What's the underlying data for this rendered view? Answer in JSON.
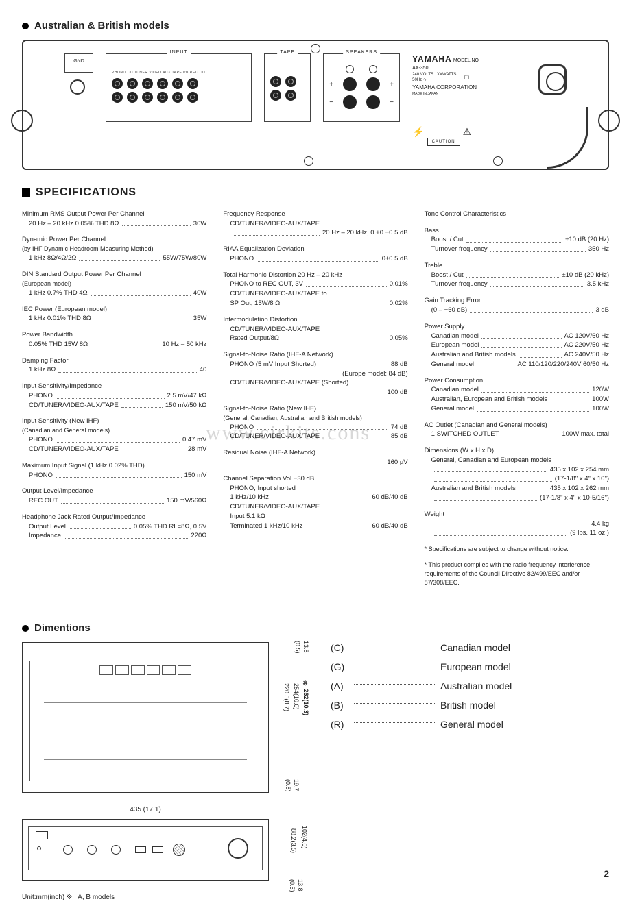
{
  "header": {
    "title": "Australian & British  models"
  },
  "rear_panel": {
    "gnd": "GND",
    "input_legend": "INPUT",
    "tape_legend": "TAPE",
    "speakers_legend": "SPEAKERS",
    "input_labels": "PHONO    CD   TUNER  VIDEO AUX   TAPE PB   REC OUT",
    "brand": "YAMAHA",
    "model_no": "MODEL NO\nAX-350",
    "voltage": "240 VOLTS   XXWATTS\n50Hz ∿",
    "corp": "YAMAHA CORPORATION",
    "made_in": "MADE IN JAPAN",
    "caution": "CAUTION"
  },
  "specs_header": "SPECIFICATIONS",
  "col1": [
    {
      "title": "Minimum RMS Output Power Per Channel",
      "lines": [
        {
          "lbl": "20 Hz – 20 kHz 0.05% THD 8Ω",
          "val": "30W"
        }
      ]
    },
    {
      "title": "Dynamic Power Per Channel",
      "sub": "(by IHF Dynamic Headroom Measuring Method)",
      "lines": [
        {
          "lbl": "1 kHz 8Ω/4Ω/2Ω",
          "val": "55W/75W/80W"
        }
      ]
    },
    {
      "title": "DIN Standard Output Power Per Channel",
      "sub": "(European model)",
      "lines": [
        {
          "lbl": "1 kHz 0.7% THD 4Ω",
          "val": "40W"
        }
      ]
    },
    {
      "title": "IEC Power (European model)",
      "lines": [
        {
          "lbl": "1 kHz 0.01% THD 8Ω",
          "val": "35W"
        }
      ]
    },
    {
      "title": "Power Bandwidth",
      "lines": [
        {
          "lbl": "0.05% THD 15W 8Ω",
          "val": "10 Hz – 50 kHz"
        }
      ]
    },
    {
      "title": "Damping Factor",
      "lines": [
        {
          "lbl": "1 kHz 8Ω",
          "val": "40"
        }
      ]
    },
    {
      "title": "Input Sensitivity/Impedance",
      "lines": [
        {
          "lbl": "PHONO",
          "val": "2.5 mV/47 kΩ"
        },
        {
          "lbl": "CD/TUNER/VIDEO-AUX/TAPE",
          "val": "150 mV/50 kΩ"
        }
      ]
    },
    {
      "title": "Input Sensitivity (New IHF)",
      "sub": "(Canadian and General models)",
      "lines": [
        {
          "lbl": "PHONO",
          "val": "0.47 mV"
        },
        {
          "lbl": "CD/TUNER/VIDEO-AUX/TAPE",
          "val": "28 mV"
        }
      ]
    },
    {
      "title": "Maximum Input Signal (1 kHz 0.02% THD)",
      "lines": [
        {
          "lbl": "PHONO",
          "val": "150 mV"
        }
      ]
    },
    {
      "title": "Output Level/Impedance",
      "lines": [
        {
          "lbl": "REC OUT",
          "val": "150 mV/560Ω"
        }
      ]
    },
    {
      "title": "Headphone Jack Rated Output/Impedance",
      "lines": [
        {
          "lbl": "Output Level",
          "val": "0.05% THD RL=8Ω, 0.5V"
        },
        {
          "lbl": "Impedance",
          "val": "220Ω"
        }
      ]
    }
  ],
  "col2": [
    {
      "title": "Frequency Response",
      "lines": [
        {
          "lbl": "CD/TUNER/VIDEO-AUX/TAPE",
          "val": ""
        },
        {
          "lbl": "",
          "val": "20 Hz – 20 kHz, 0 +0 −0.5 dB"
        }
      ]
    },
    {
      "title": "RIAA Equalization Deviation",
      "lines": [
        {
          "lbl": "PHONO",
          "val": "0±0.5 dB"
        }
      ]
    },
    {
      "title": "Total Harmonic Distortion 20 Hz – 20 kHz",
      "lines": [
        {
          "lbl": "PHONO to REC OUT, 3V",
          "val": "0.01%"
        },
        {
          "lbl": "CD/TUNER/VIDEO-AUX/TAPE to",
          "val": ""
        },
        {
          "lbl": "SP Out, 15W/8 Ω",
          "val": "0.02%"
        }
      ]
    },
    {
      "title": "Intermodulation Distortion",
      "lines": [
        {
          "lbl": "CD/TUNER/VIDEO-AUX/TAPE",
          "val": ""
        },
        {
          "lbl": "Rated Output/8Ω",
          "val": "0.05%"
        }
      ]
    },
    {
      "title": "Signal-to-Noise Ratio (IHF-A Network)",
      "lines": [
        {
          "lbl": "PHONO (5 mV Input Shorted)",
          "val": "88 dB"
        },
        {
          "lbl": "",
          "val": "(Europe model: 84 dB)"
        },
        {
          "lbl": "CD/TUNER/VIDEO-AUX/TAPE (Shorted)",
          "val": ""
        },
        {
          "lbl": "",
          "val": "100 dB"
        }
      ]
    },
    {
      "title": "Signal-to-Noise Ratio (New IHF)",
      "sub": "(General, Canadian, Australian and British models)",
      "lines": [
        {
          "lbl": "PHONO",
          "val": "74 dB"
        },
        {
          "lbl": "CD/TUNER/VIDEO-AUX/TAPE",
          "val": "85 dB"
        }
      ]
    },
    {
      "title": "Residual Noise (IHF-A Network)",
      "lines": [
        {
          "lbl": "",
          "val": "160 µV"
        }
      ]
    },
    {
      "title": "Channel Separation Vol −30 dB",
      "lines": [
        {
          "lbl": "PHONO, Input shorted",
          "val": ""
        },
        {
          "lbl": "1 kHz/10 kHz",
          "val": "60 dB/40 dB"
        },
        {
          "lbl": "CD/TUNER/VIDEO-AUX/TAPE",
          "val": ""
        },
        {
          "lbl": "Input 5.1 kΩ",
          "val": ""
        },
        {
          "lbl": "Terminated 1 kHz/10 kHz",
          "val": "60 dB/40 dB"
        }
      ]
    }
  ],
  "col3": [
    {
      "title": "Tone Control Characteristics",
      "lines": []
    },
    {
      "title": "Bass",
      "indent": true,
      "lines": [
        {
          "lbl": "Boost / Cut",
          "val": "±10 dB (20 Hz)"
        },
        {
          "lbl": "Turnover frequency",
          "val": "350 Hz"
        }
      ]
    },
    {
      "title": "Treble",
      "indent": true,
      "lines": [
        {
          "lbl": "Boost / Cut",
          "val": "±10 dB (20 kHz)"
        },
        {
          "lbl": "Turnover frequency",
          "val": "3.5 kHz"
        }
      ]
    },
    {
      "title": "Gain Tracking Error",
      "lines": [
        {
          "lbl": "(0 – −60 dB)",
          "val": "3 dB"
        }
      ]
    },
    {
      "title": "Power Supply",
      "lines": [
        {
          "lbl": "Canadian model",
          "val": "AC 120V/60 Hz"
        },
        {
          "lbl": "European model",
          "val": "AC 220V/50 Hz"
        },
        {
          "lbl": "Australian and British models",
          "val": "AC 240V/50 Hz"
        },
        {
          "lbl": "General model",
          "val": "AC 110/120/220/240V 60/50 Hz"
        }
      ]
    },
    {
      "title": "Power Consumption",
      "lines": [
        {
          "lbl": "Canadian model",
          "val": "120W"
        },
        {
          "lbl": "Australian, European and British models",
          "val": "100W"
        },
        {
          "lbl": "General model",
          "val": "100W"
        }
      ]
    },
    {
      "title": "AC Outlet (Canadian and General models)",
      "lines": [
        {
          "lbl": "1 SWITCHED OUTLET",
          "val": "100W max. total"
        }
      ]
    },
    {
      "title": "Dimensions (W x H x D)",
      "lines": [
        {
          "lbl": "General, Canadian and European models",
          "val": ""
        },
        {
          "lbl": "",
          "val": "435 x 102 x 254 mm"
        },
        {
          "lbl": "",
          "val": "(17-1/8\" x 4\" x 10\")"
        },
        {
          "lbl": "Australian and British models",
          "val": "435 x 102 x 262 mm"
        },
        {
          "lbl": "",
          "val": "(17-1/8\" x 4\" x 10-5/16\")"
        }
      ]
    },
    {
      "title": "Weight",
      "lines": [
        {
          "lbl": "",
          "val": "4.4 kg"
        },
        {
          "lbl": "",
          "val": "(9 lbs. 11 oz.)"
        }
      ]
    }
  ],
  "footnotes": [
    "* Specifications are subject to change without notice.",
    "* This product complies with the radio frequency interference requirements of the Council Directive 82/499/EEC and/or 87/308/EEC."
  ],
  "dimentions": {
    "header": "Dimentions",
    "top": {
      "h1": "220.5(8.7)",
      "h2": "254(10.0)",
      "h3": "※ 262(10.3)",
      "top_gap": "13.8\n(0.5)",
      "bot_gap": "19.7\n(0.8)"
    },
    "front": {
      "width": "435 (17.1)",
      "h1": "88.2(3.5)",
      "h2": "102(4.0)",
      "bot_gap": "13.8\n(0.5)"
    },
    "unit": "Unit:mm(inch)     ※ : A, B models"
  },
  "model_legend": [
    {
      "code": "(C)",
      "name": "Canadian model"
    },
    {
      "code": "(G)",
      "name": "European model"
    },
    {
      "code": "(A)",
      "name": "Australian model"
    },
    {
      "code": "(B)",
      "name": "British model"
    },
    {
      "code": "(R)",
      "name": "General model"
    }
  ],
  "page_number": "2"
}
